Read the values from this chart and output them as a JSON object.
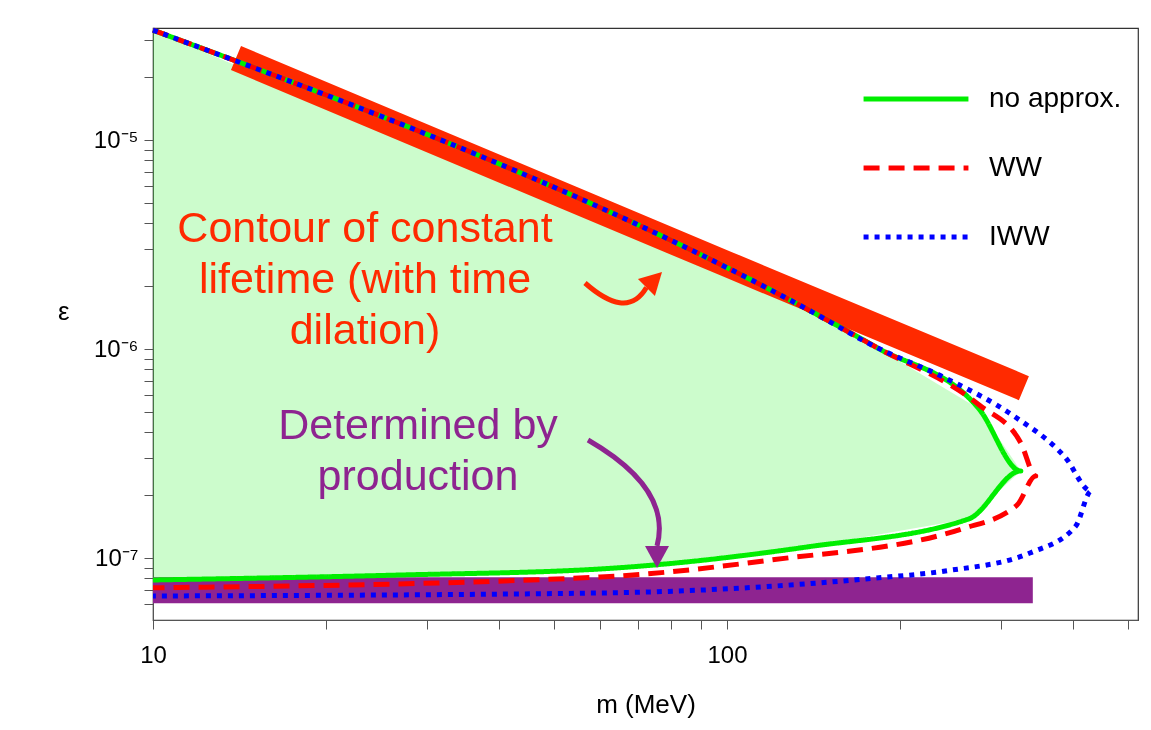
{
  "chart_data": {
    "type": "line",
    "xlabel": "m  (MeV)",
    "ylabel": "ε",
    "log": "xy",
    "grid": false,
    "legend": "top right",
    "xlim": [
      10,
      520
    ],
    "ylim": [
      5.05e-08,
      3.44e-05
    ],
    "xticks": [
      10,
      {
        "value": 20,
        "label": null
      },
      {
        "value": 30,
        "label": null
      },
      {
        "value": 40,
        "label": null
      },
      {
        "value": 50,
        "label": null
      },
      {
        "value": 60,
        "label": null
      },
      {
        "value": 70,
        "label": null
      },
      {
        "value": 80,
        "label": null
      },
      {
        "value": 90,
        "label": null
      },
      100,
      {
        "value": 200,
        "label": null
      },
      {
        "value": 300,
        "label": null
      },
      {
        "value": 400,
        "label": null
      },
      {
        "value": 500,
        "label": null
      }
    ],
    "yticks": [
      {
        "value": 1e-07,
        "label": "10⁻⁷"
      },
      {
        "value": 2e-07,
        "label": null
      },
      {
        "value": 3e-07,
        "label": null
      },
      {
        "value": 4e-07,
        "label": null
      },
      {
        "value": 5e-07,
        "label": null
      },
      {
        "value": 6e-07,
        "label": null
      },
      {
        "value": 7e-07,
        "label": null
      },
      {
        "value": 8e-07,
        "label": null
      },
      {
        "value": 9e-07,
        "label": null
      },
      {
        "value": 1e-06,
        "label": "10⁻⁶"
      },
      {
        "value": 2e-06,
        "label": null
      },
      {
        "value": 3e-06,
        "label": null
      },
      {
        "value": 4e-06,
        "label": null
      },
      {
        "value": 5e-06,
        "label": null
      },
      {
        "value": 6e-06,
        "label": null
      },
      {
        "value": 7e-06,
        "label": null
      },
      {
        "value": 8e-06,
        "label": null
      },
      {
        "value": 9e-06,
        "label": null
      },
      {
        "value": 1e-05,
        "label": "10⁻⁵"
      },
      {
        "value": 2e-05,
        "label": null
      },
      {
        "value": 3e-05,
        "label": null
      },
      {
        "value": 6e-08,
        "label": null
      },
      {
        "value": 7e-08,
        "label": null
      },
      {
        "value": 8e-08,
        "label": null
      },
      {
        "value": 9e-08,
        "label": null
      }
    ],
    "annotations": [
      "Contour of constant\nlifetime (with time\ndilation)",
      "Determined by\nproduction"
    ],
    "series": [
      {
        "name": "no approx.",
        "type": "area",
        "color": "#00ee00",
        "x": [
          10,
          138,
          182,
          275,
          325,
          264,
          138,
          60.1,
          26.9,
          10
        ],
        "values": [
          3.36e-05,
          1.55e-06,
          1.02e-06,
          5.16e-07,
          2.61e-07,
          1.54e-07,
          1.13e-07,
          8.86e-08,
          8.29e-08,
          7.85e-08
        ]
      },
      {
        "name": "WW",
        "type": "line",
        "line_style": "dashed",
        "color": "#ff0000",
        "x": [
          10,
          138,
          182,
          275,
          325,
          345,
          320,
          257,
          120,
          60.1,
          10
        ],
        "values": [
          3.36e-05,
          1.55e-06,
          1.02e-06,
          5.4e-07,
          3.55e-07,
          2.47e-07,
          1.79e-07,
          1.38e-07,
          9.8e-08,
          8.11e-08,
          7.2e-08
        ]
      },
      {
        "name": "IWW",
        "type": "line",
        "line_style": "dotted",
        "color": "#0000ff",
        "x": [
          10,
          138,
          182,
          240,
          316,
          388,
          431,
          405,
          338,
          240,
          182,
          60.1,
          10
        ],
        "values": [
          3.36e-05,
          1.55e-06,
          1.02e-06,
          7.27e-07,
          4.78e-07,
          3.04e-07,
          2.09e-07,
          1.42e-07,
          1.06e-07,
          8.67e-08,
          8.02e-08,
          6.8e-08,
          6.58e-08
        ]
      },
      {
        "type": "line",
        "color": "#ff2a00",
        "x": [
          13.95,
          100,
          329
        ],
        "values": [
          2.47e-05,
          2.55e-06,
          6.5e-07
        ]
      },
      {
        "type": "line",
        "color": "#8e2490",
        "x": [
          10,
          341
        ],
        "values": [
          7e-08,
          7e-08
        ]
      }
    ]
  }
}
